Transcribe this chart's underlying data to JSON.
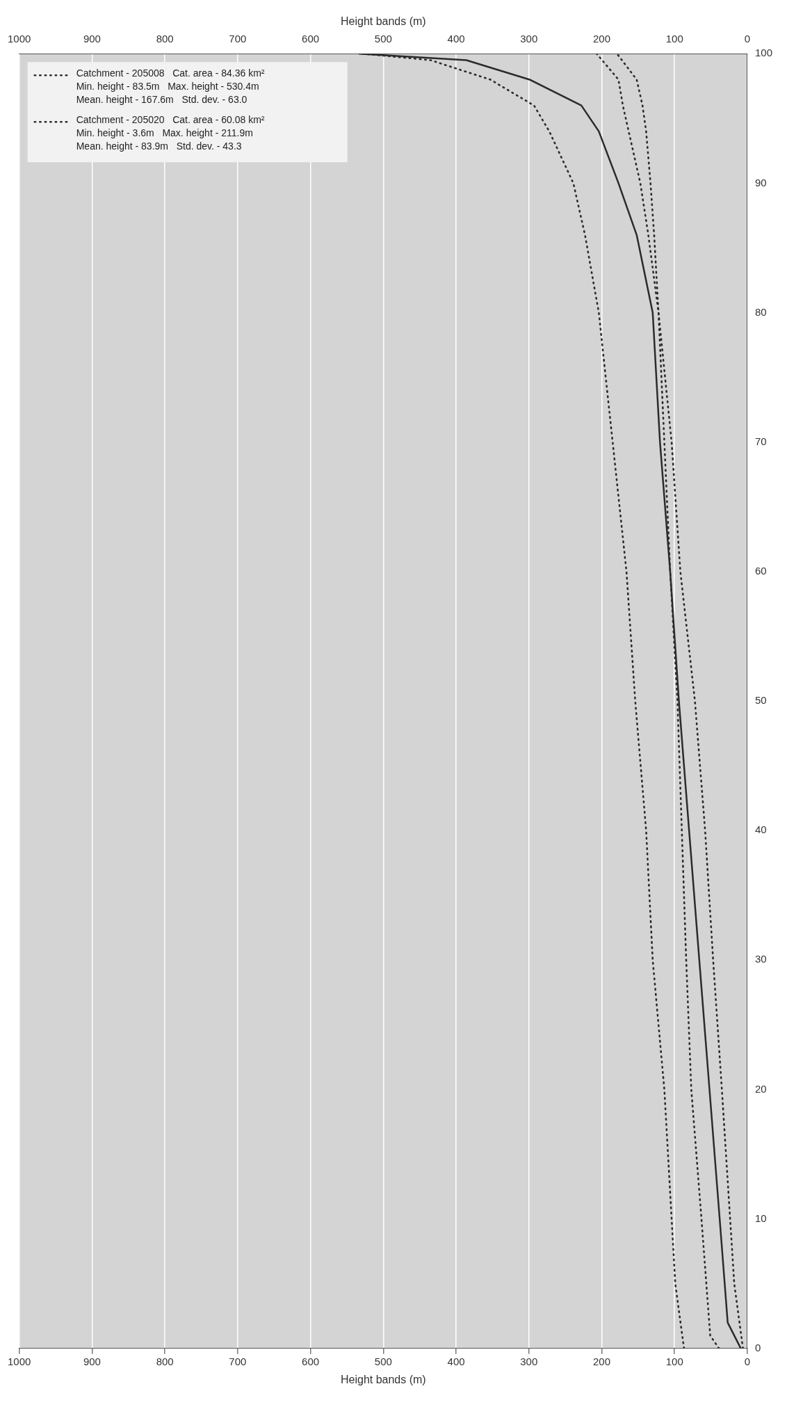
{
  "chart_data": {
    "type": "line",
    "xlabel": "Height bands (m)",
    "x2label": "Height bands (m)",
    "xlim": [
      1000,
      0
    ],
    "xticks": [
      1000,
      900,
      800,
      700,
      600,
      500,
      400,
      300,
      200,
      100,
      0
    ],
    "x2lim": [
      1000,
      0
    ],
    "x2ticks": [
      1000,
      900,
      800,
      700,
      600,
      500,
      400,
      300,
      200,
      100,
      0
    ],
    "ylim": [
      0,
      100
    ],
    "yticks": [
      0,
      10,
      20,
      30,
      40,
      50,
      60,
      70,
      80,
      90,
      100
    ],
    "grid": "x",
    "legend": "top left",
    "marker": "none",
    "series": [
      {
        "color": "#2b2b2b",
        "line_style": "solid",
        "x": [
          9,
          27,
          38,
          52,
          66,
          80,
          94,
          106,
          120,
          130,
          152,
          177,
          204,
          228,
          299,
          386,
          533
        ],
        "values": [
          0,
          2,
          10,
          20,
          30,
          40,
          50,
          60,
          70,
          80,
          86,
          90,
          94,
          96,
          98,
          99.5,
          100
        ]
      },
      {
        "name": "Catchment - 205008  Cat. area - 84.36 km²  Min. height - 83.5m  Max. height - 530.4m  Mean. height - 167.6m  Std. dev. - 63.0",
        "color": "#2b2b2b",
        "line_style": "dotted",
        "x": [
          87,
          99,
          114,
          130,
          139,
          154,
          166,
          185,
          204,
          223,
          239,
          272,
          293,
          353,
          435,
          528
        ],
        "values": [
          0,
          5,
          20,
          30,
          40,
          50,
          60,
          70,
          80,
          86,
          90,
          94,
          96,
          98,
          99.5,
          100
        ]
      },
      {
        "name": "Catchment - 205020  Cat. area - 60.08 km²  Min. height - 3.6m  Max. height - 211.9m  Mean. height - 83.9m  Std. dev. - 43.3",
        "color": "#2b2b2b",
        "line_style": "dotted",
        "x": [
          6,
          18,
          35,
          47,
          58,
          72,
          92,
          104,
          122,
          136,
          147,
          163,
          171,
          177,
          207
        ],
        "values": [
          0,
          5,
          20,
          30,
          40,
          50,
          60,
          70,
          80,
          86,
          90,
          94,
          96,
          98,
          100
        ]
      },
      {
        "color": "#2b2b2b",
        "line_style": "dotted",
        "x": [
          39,
          51,
          63,
          77,
          84,
          90,
          96,
          106,
          114,
          122,
          128,
          133,
          139,
          144,
          152,
          179
        ],
        "values": [
          0,
          1,
          10,
          20,
          30,
          40,
          50,
          60,
          70,
          80,
          86,
          90,
          94,
          96,
          98,
          100
        ]
      }
    ]
  }
}
